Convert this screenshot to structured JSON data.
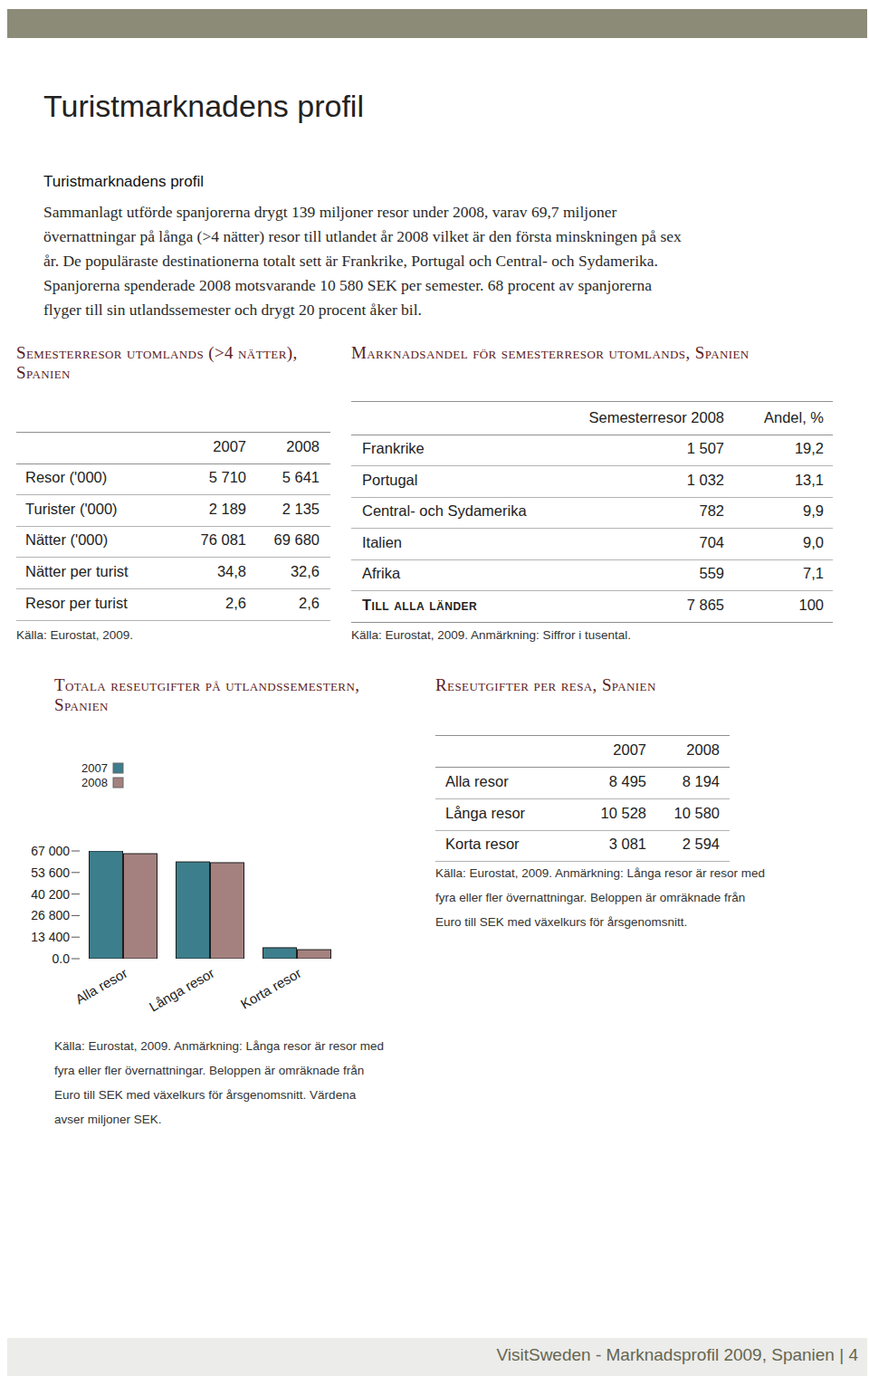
{
  "header": {
    "title": "Turistmarknadens profil"
  },
  "intro": {
    "heading": "Turistmarknadens profil",
    "lines": [
      "Sammanlagt utförde spanjorerna drygt 139 miljoner resor under 2008, varav 69,7 miljoner",
      "övernattningar på långa (>4 nätter) resor till utlandet år 2008 vilket är den första minskningen på sex",
      "år. De populäraste destinationerna totalt sett är Frankrike, Portugal och Central- och Sydamerika.",
      "Spanjorerna spenderade 2008 motsvarande 10 580 SEK per semester. 68 procent av spanjorerna",
      "flyger till sin utlandssemester och drygt 20 procent åker bil."
    ]
  },
  "table_trips": {
    "title": "Semesterresor utomlands (>4 nätter), Spanien",
    "columns": [
      "2007",
      "2008"
    ],
    "rows": [
      {
        "label": "Resor ('000)",
        "cells": [
          "5 710",
          "5 641"
        ]
      },
      {
        "label": "Turister ('000)",
        "cells": [
          "2 189",
          "2 135"
        ]
      },
      {
        "label": "Nätter ('000)",
        "cells": [
          "76 081",
          "69 680"
        ]
      },
      {
        "label": "Nätter per turist",
        "cells": [
          "34,8",
          "32,6"
        ]
      },
      {
        "label": "Resor per turist",
        "cells": [
          "2,6",
          "2,6"
        ]
      }
    ],
    "source": "Källa: Eurostat, 2009."
  },
  "table_share": {
    "title": "Marknadsandel för semesterresor utomlands, Spanien",
    "columns": [
      "Semesterresor 2008",
      "Andel, %"
    ],
    "rows": [
      {
        "label": "Frankrike",
        "cells": [
          "1 507",
          "19,2"
        ]
      },
      {
        "label": "Portugal",
        "cells": [
          "1 032",
          "13,1"
        ]
      },
      {
        "label": "Central- och Sydamerika",
        "cells": [
          "782",
          "9,9"
        ]
      },
      {
        "label": "Italien",
        "cells": [
          "704",
          "9,0"
        ]
      },
      {
        "label": "Afrika",
        "cells": [
          "559",
          "7,1"
        ]
      }
    ],
    "total": {
      "label": "Till alla länder",
      "cells": [
        "7 865",
        "100"
      ]
    },
    "source": "Källa: Eurostat, 2009. Anmärkning: Siffror i tusental."
  },
  "chart_data": {
    "type": "bar",
    "title": "Totala reseutgifter på utlandssemestern, Spanien",
    "categories": [
      "Alla resor",
      "Långa resor",
      "Korta resor"
    ],
    "series": [
      {
        "name": "2007",
        "color": "#3c7e8c",
        "values": [
          67000,
          60200,
          6800
        ]
      },
      {
        "name": "2008",
        "color": "#a4817f",
        "values": [
          65300,
          59700,
          5600
        ]
      }
    ],
    "ylim": [
      0,
      67000
    ],
    "yticks": [
      {
        "value": 0,
        "label": "0.0"
      },
      {
        "value": 13400,
        "label": "13 400"
      },
      {
        "value": 26800,
        "label": "26 800"
      },
      {
        "value": 40200,
        "label": "40 200"
      },
      {
        "value": 53600,
        "label": "53 600"
      },
      {
        "value": 67000,
        "label": "67 000"
      }
    ],
    "legend": "top-left",
    "grid": false,
    "annotations": [
      "Källa: Eurostat, 2009. Anmärkning: Långa resor är resor med",
      "fyra eller fler övernattningar. Beloppen är omräknade från",
      "Euro till SEK med växelkurs för årsgenomsnitt. Värdena",
      "avser miljoner SEK."
    ]
  },
  "table_per_trip": {
    "title": "Reseutgifter per resa, Spanien",
    "columns": [
      "2007",
      "2008"
    ],
    "rows": [
      {
        "label": "Alla resor",
        "cells": [
          "8 495",
          "8 194"
        ]
      },
      {
        "label": "Långa resor",
        "cells": [
          "10 528",
          "10 580"
        ]
      },
      {
        "label": "Korta resor",
        "cells": [
          "3 081",
          "2 594"
        ]
      }
    ],
    "notes": [
      "Källa: Eurostat, 2009. Anmärkning: Långa resor är resor med",
      "fyra eller fler övernattningar. Beloppen är omräknade från",
      "Euro till SEK med växelkurs för årsgenomsnitt."
    ]
  },
  "footer": {
    "text": "VisitSweden - Marknadsprofil 2009, Spanien | 4"
  }
}
